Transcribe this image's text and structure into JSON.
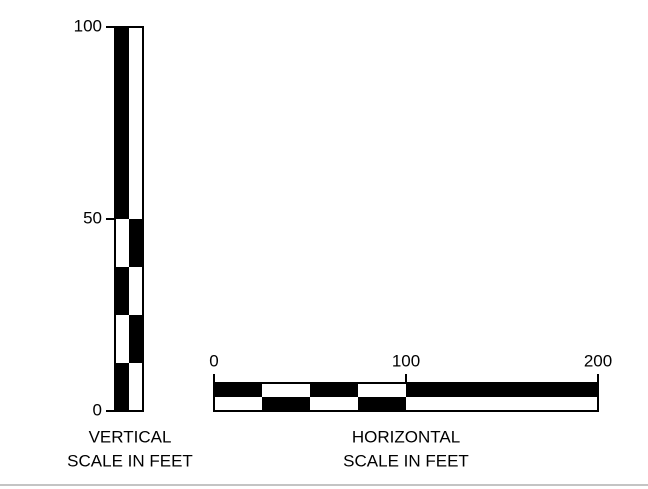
{
  "vertical_scale": {
    "ticks": [
      0,
      50,
      100
    ],
    "label": [
      "VERTICAL",
      "SCALE IN FEET"
    ]
  },
  "horizontal_scale": {
    "ticks": [
      0,
      100,
      200
    ],
    "label": [
      "HORIZONTAL",
      "SCALE IN FEET"
    ]
  }
}
